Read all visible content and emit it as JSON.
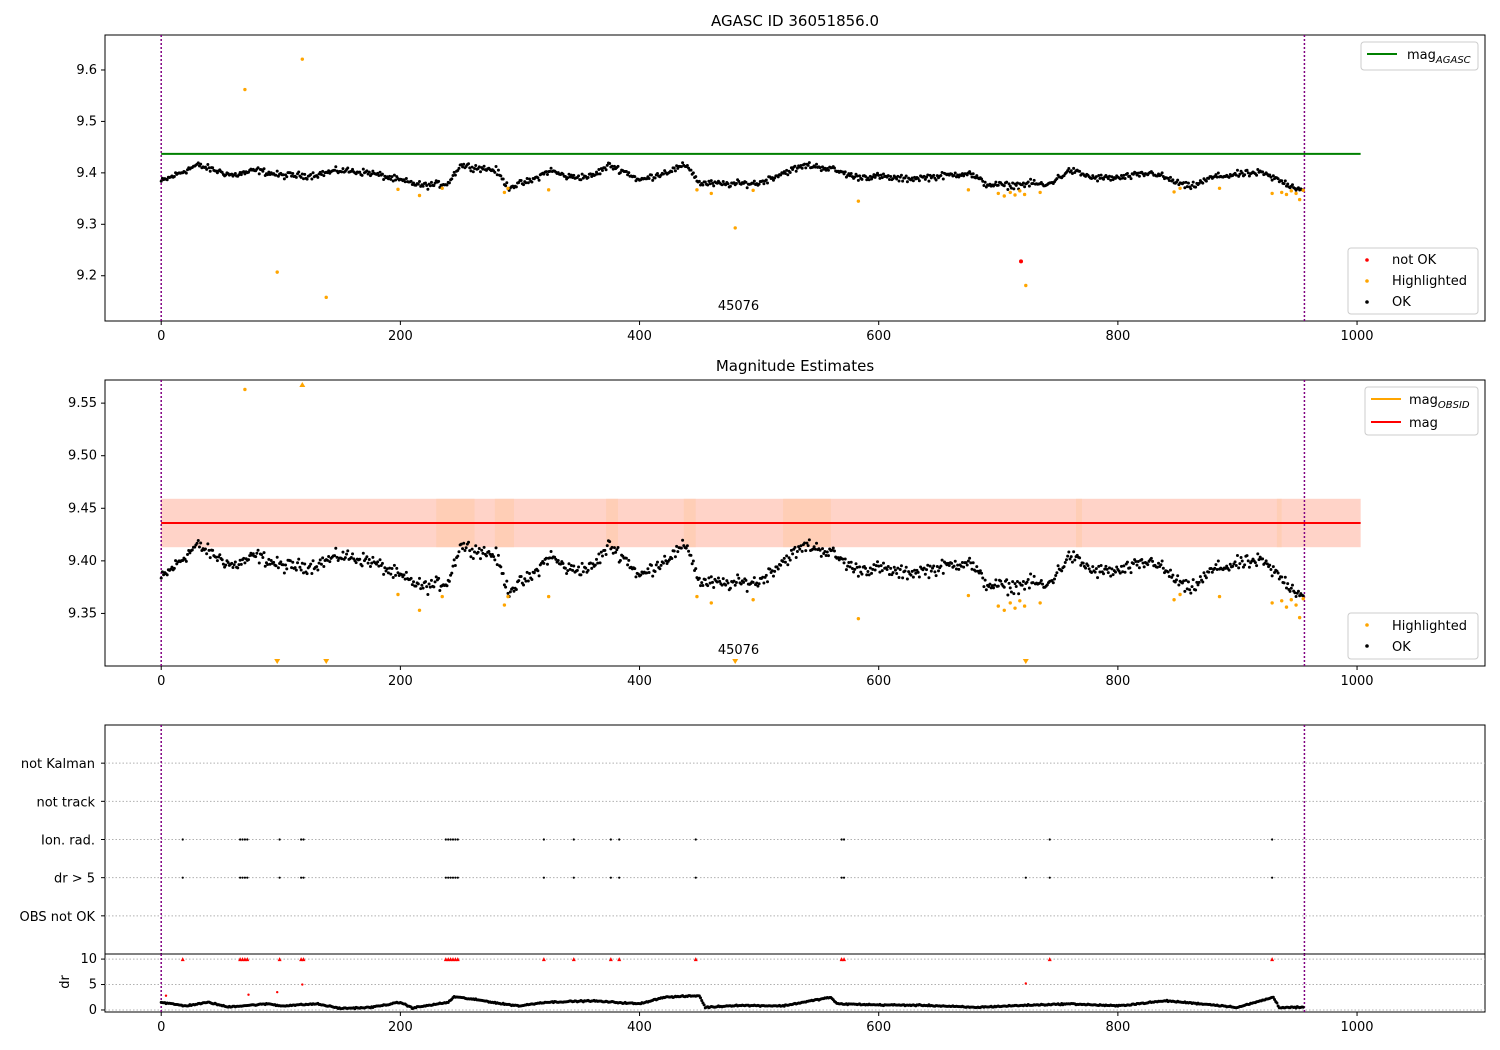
{
  "chart_data": [
    {
      "type": "scatter",
      "title": "AGASC ID 36051856.0",
      "xlabel": "",
      "ylabel": "",
      "xlim": [
        -47,
        1107
      ],
      "ylim": [
        9.112,
        9.668
      ],
      "x_ticks": [
        0,
        200,
        400,
        600,
        800,
        1000
      ],
      "y_ticks": [
        9.2,
        9.3,
        9.4,
        9.5,
        9.6
      ],
      "y_decimals": 1,
      "vlines": [
        0,
        956
      ],
      "annotation": {
        "text": "45076",
        "x": 478,
        "y": 9.118
      },
      "line_legend": {
        "position": "top-right",
        "entries": [
          {
            "label_main": "mag",
            "label_sub": "AGASC",
            "color": "#008000"
          }
        ]
      },
      "point_legend": {
        "position": "bottom-right",
        "entries": [
          {
            "label": "not OK",
            "color": "#ff0000"
          },
          {
            "label": "Highlighted",
            "color": "#ffa500"
          },
          {
            "label": "OK",
            "color": "#000000"
          }
        ]
      },
      "hline": {
        "y": 9.437,
        "x_end": 1003,
        "color": "#008000"
      },
      "series": [
        {
          "name": "OK",
          "color": "#000000",
          "generated": {
            "n": 956,
            "x_step": 1,
            "base": "mag_base",
            "noise": 0.006
          }
        },
        {
          "name": "Highlighted",
          "color": "#ffa500",
          "points": [
            [
              70,
              9.562
            ],
            [
              118,
              9.621
            ],
            [
              97,
              9.207
            ],
            [
              138,
              9.158
            ],
            [
              480,
              9.293
            ],
            [
              583,
              9.345
            ],
            [
              723,
              9.181
            ],
            [
              198,
              9.368
            ],
            [
              216,
              9.356
            ],
            [
              235,
              9.37
            ],
            [
              287,
              9.362
            ],
            [
              290,
              9.37
            ],
            [
              324,
              9.367
            ],
            [
              448,
              9.367
            ],
            [
              460,
              9.36
            ],
            [
              495,
              9.366
            ],
            [
              675,
              9.367
            ],
            [
              700,
              9.36
            ],
            [
              705,
              9.355
            ],
            [
              710,
              9.362
            ],
            [
              714,
              9.357
            ],
            [
              718,
              9.365
            ],
            [
              722,
              9.358
            ],
            [
              735,
              9.362
            ],
            [
              847,
              9.363
            ],
            [
              852,
              9.37
            ],
            [
              885,
              9.37
            ],
            [
              929,
              9.36
            ],
            [
              937,
              9.362
            ],
            [
              941,
              9.358
            ],
            [
              945,
              9.365
            ],
            [
              949,
              9.36
            ],
            [
              952,
              9.348
            ],
            [
              955,
              9.366
            ]
          ]
        },
        {
          "name": "not OK",
          "color": "#ff0000",
          "points": [
            [
              719,
              9.228
            ]
          ]
        }
      ]
    },
    {
      "type": "scatter",
      "title": "Magnitude Estimates",
      "xlabel": "",
      "ylabel": "",
      "xlim": [
        -47,
        1107
      ],
      "ylim": [
        9.3,
        9.572
      ],
      "x_ticks": [
        0,
        200,
        400,
        600,
        800,
        1000
      ],
      "y_ticks": [
        9.35,
        9.4,
        9.45,
        9.5,
        9.55
      ],
      "y_decimals": 2,
      "vlines": [
        0,
        956
      ],
      "annotation": {
        "text": "45076",
        "x": 478,
        "y": 9.304
      },
      "line_legend": {
        "position": "top-right",
        "entries": [
          {
            "label_main": "mag",
            "label_sub": "OBSID",
            "color": "#ffa500"
          },
          {
            "label_main": "mag",
            "label_sub": "",
            "color": "#ff0000"
          }
        ]
      },
      "point_legend": {
        "position": "bottom-right",
        "entries": [
          {
            "label": "Highlighted",
            "color": "#ffa500"
          },
          {
            "label": "OK",
            "color": "#000000"
          }
        ]
      },
      "hline": {
        "y": 9.436,
        "x_end": 1003,
        "color": "#ff0000"
      },
      "band": {
        "y1": 9.413,
        "y2": 9.459,
        "x_end": 1003
      },
      "obsid_segments": [
        [
          230,
          262
        ],
        [
          279,
          295
        ],
        [
          372,
          382
        ],
        [
          437,
          447
        ],
        [
          520,
          560
        ],
        [
          765,
          770
        ],
        [
          933,
          937
        ]
      ],
      "series": [
        {
          "name": "OK",
          "color": "#000000",
          "generated": {
            "n": 956,
            "x_step": 1,
            "base": "mag_base",
            "noise": 0.006
          }
        },
        {
          "name": "Highlighted",
          "color": "#ffa500",
          "points": [
            [
              70,
              9.563
            ],
            [
              198,
              9.368
            ],
            [
              216,
              9.353
            ],
            [
              235,
              9.366
            ],
            [
              287,
              9.358
            ],
            [
              290,
              9.366
            ],
            [
              324,
              9.366
            ],
            [
              448,
              9.366
            ],
            [
              460,
              9.36
            ],
            [
              495,
              9.363
            ],
            [
              583,
              9.345
            ],
            [
              675,
              9.367
            ],
            [
              700,
              9.357
            ],
            [
              705,
              9.353
            ],
            [
              710,
              9.36
            ],
            [
              714,
              9.355
            ],
            [
              718,
              9.362
            ],
            [
              722,
              9.357
            ],
            [
              735,
              9.36
            ],
            [
              847,
              9.363
            ],
            [
              852,
              9.368
            ],
            [
              885,
              9.366
            ],
            [
              929,
              9.36
            ],
            [
              937,
              9.362
            ],
            [
              941,
              9.356
            ],
            [
              945,
              9.363
            ],
            [
              949,
              9.358
            ],
            [
              952,
              9.346
            ],
            [
              955,
              9.364
            ]
          ]
        },
        {
          "name": "off-scale",
          "color": "#ffa500",
          "markers": [
            {
              "x": 118,
              "dir": "up"
            },
            {
              "x": 97,
              "dir": "down"
            },
            {
              "x": 138,
              "dir": "down"
            },
            {
              "x": 480,
              "dir": "down"
            },
            {
              "x": 723,
              "dir": "down"
            }
          ]
        }
      ]
    },
    {
      "type": "scatter",
      "title": "",
      "xlabel": "",
      "ylabel": "",
      "xlim": [
        -47,
        1107
      ],
      "ylim": [
        0,
        6
      ],
      "categories": [
        "OBS not OK",
        "dr > 5",
        "Ion. rad.",
        "not track",
        "not Kalman"
      ],
      "vlines": [
        0,
        956
      ],
      "flag_x": [
        18,
        66,
        68,
        70,
        72,
        99,
        117,
        119,
        238,
        240,
        242,
        244,
        246,
        248,
        320,
        345,
        376,
        383,
        447,
        569,
        571,
        743,
        929
      ],
      "dr_extra_x": [
        723
      ]
    },
    {
      "type": "scatter",
      "title": "",
      "xlabel": "",
      "ylabel": "dr",
      "xlim": [
        -47,
        1107
      ],
      "ylim": [
        -0.4,
        11.0
      ],
      "x_ticks": [
        0,
        200,
        400,
        600,
        800,
        1000
      ],
      "y_ticks": [
        0,
        5,
        10
      ],
      "y_decimals": 0,
      "vlines": [
        0,
        956
      ],
      "series": [
        {
          "name": "OK",
          "color": "#000000",
          "generated": {
            "n": 956,
            "x_step": 1,
            "base": "dr_base"
          }
        },
        {
          "name": "capped",
          "color": "#ff0000",
          "points_at_y": 10,
          "x": [
            18,
            66,
            68,
            70,
            72,
            99,
            117,
            119,
            238,
            240,
            242,
            244,
            246,
            248,
            320,
            345,
            376,
            383,
            447,
            569,
            571,
            743,
            929
          ]
        },
        {
          "name": "flagged",
          "color": "#ff0000",
          "points": [
            [
              4,
              2.8
            ],
            [
              73,
              3.0
            ],
            [
              97,
              3.5
            ],
            [
              118,
              5.0
            ],
            [
              723,
              5.2
            ]
          ]
        }
      ]
    }
  ]
}
